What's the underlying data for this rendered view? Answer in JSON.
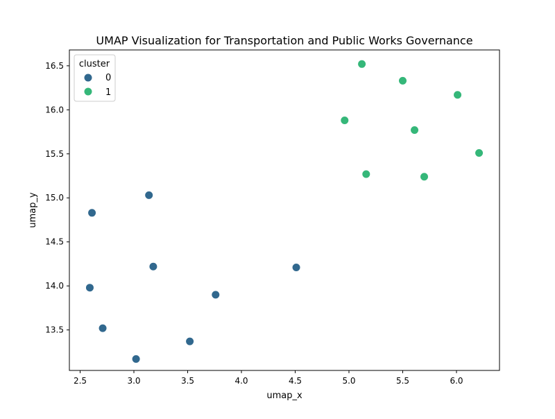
{
  "chart_data": {
    "type": "scatter",
    "title": "UMAP Visualization for Transportation and Public Works Governance",
    "xlabel": "umap_x",
    "ylabel": "umap_y",
    "xlim": [
      2.4,
      6.4
    ],
    "ylim": [
      13.04,
      16.68
    ],
    "xticks": [
      2.5,
      3.0,
      3.5,
      4.0,
      4.5,
      5.0,
      5.5,
      6.0
    ],
    "xtick_labels": [
      "2.5",
      "3.0",
      "3.5",
      "4.0",
      "4.5",
      "5.0",
      "5.5",
      "6.0"
    ],
    "yticks": [
      13.5,
      14.0,
      14.5,
      15.0,
      15.5,
      16.0,
      16.5
    ],
    "ytick_labels": [
      "13.5",
      "14.0",
      "14.5",
      "15.0",
      "15.5",
      "16.0",
      "16.5"
    ],
    "grid": false,
    "legend": {
      "title": "cluster",
      "placement": "top-left",
      "entries": [
        {
          "label": "0",
          "color": "#31688e"
        },
        {
          "label": "1",
          "color": "#35b779"
        }
      ]
    },
    "series": [
      {
        "name": "0",
        "color": "#31688e",
        "points": [
          [
            2.61,
            14.83
          ],
          [
            3.14,
            15.03
          ],
          [
            3.18,
            14.22
          ],
          [
            2.59,
            13.98
          ],
          [
            2.71,
            13.52
          ],
          [
            3.02,
            13.17
          ],
          [
            3.52,
            13.37
          ],
          [
            3.76,
            13.9
          ],
          [
            4.51,
            14.21
          ]
        ]
      },
      {
        "name": "1",
        "color": "#35b779",
        "points": [
          [
            5.12,
            16.52
          ],
          [
            5.5,
            16.33
          ],
          [
            6.01,
            16.17
          ],
          [
            4.96,
            15.88
          ],
          [
            5.61,
            15.77
          ],
          [
            6.21,
            15.51
          ],
          [
            5.16,
            15.27
          ],
          [
            5.7,
            15.24
          ]
        ]
      }
    ]
  }
}
